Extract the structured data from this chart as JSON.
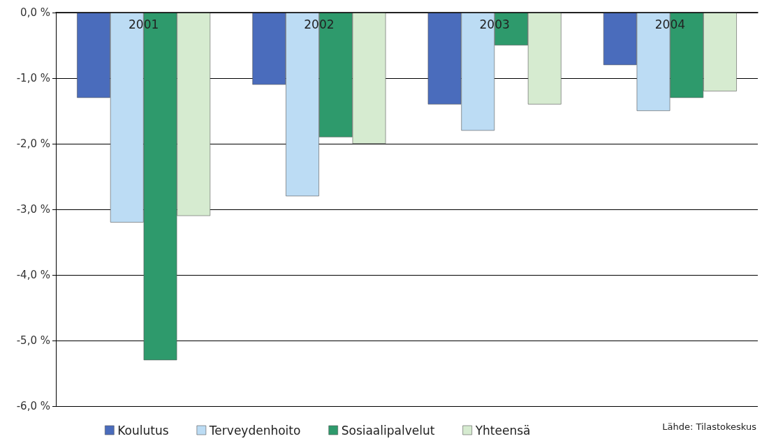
{
  "chart_data": {
    "type": "bar",
    "categories": [
      "2001",
      "2002",
      "2003",
      "2004"
    ],
    "series": [
      {
        "name": "Koulutus",
        "color": "#4a6cbc",
        "values": [
          -1.3,
          -1.1,
          -1.4,
          -0.8
        ]
      },
      {
        "name": "Terveydenhoito",
        "color": "#bcdcf4",
        "values": [
          -3.2,
          -2.8,
          -1.8,
          -1.5
        ]
      },
      {
        "name": "Sosiaalipalvelut",
        "color": "#2e9a6c",
        "values": [
          -5.3,
          -1.9,
          -0.5,
          -1.3
        ]
      },
      {
        "name": "Yhteensä",
        "color": "#d6ebd0",
        "values": [
          -3.1,
          -2.0,
          -1.4,
          -1.2
        ]
      }
    ],
    "ylim": [
      -6,
      0
    ],
    "yticks": [
      {
        "value": -6,
        "label": "-6,0 %"
      },
      {
        "value": -5,
        "label": "-5,0 %"
      },
      {
        "value": -4,
        "label": "-4,0 %"
      },
      {
        "value": -3,
        "label": "-3,0 %"
      },
      {
        "value": -2,
        "label": "-2,0 %"
      },
      {
        "value": -1,
        "label": "-1,0 %"
      },
      {
        "value": 0,
        "label": "0,0 %"
      }
    ],
    "grid": "y",
    "legend": "bottom left",
    "annotations": [
      "Lähde: Tilastokeskus"
    ]
  }
}
